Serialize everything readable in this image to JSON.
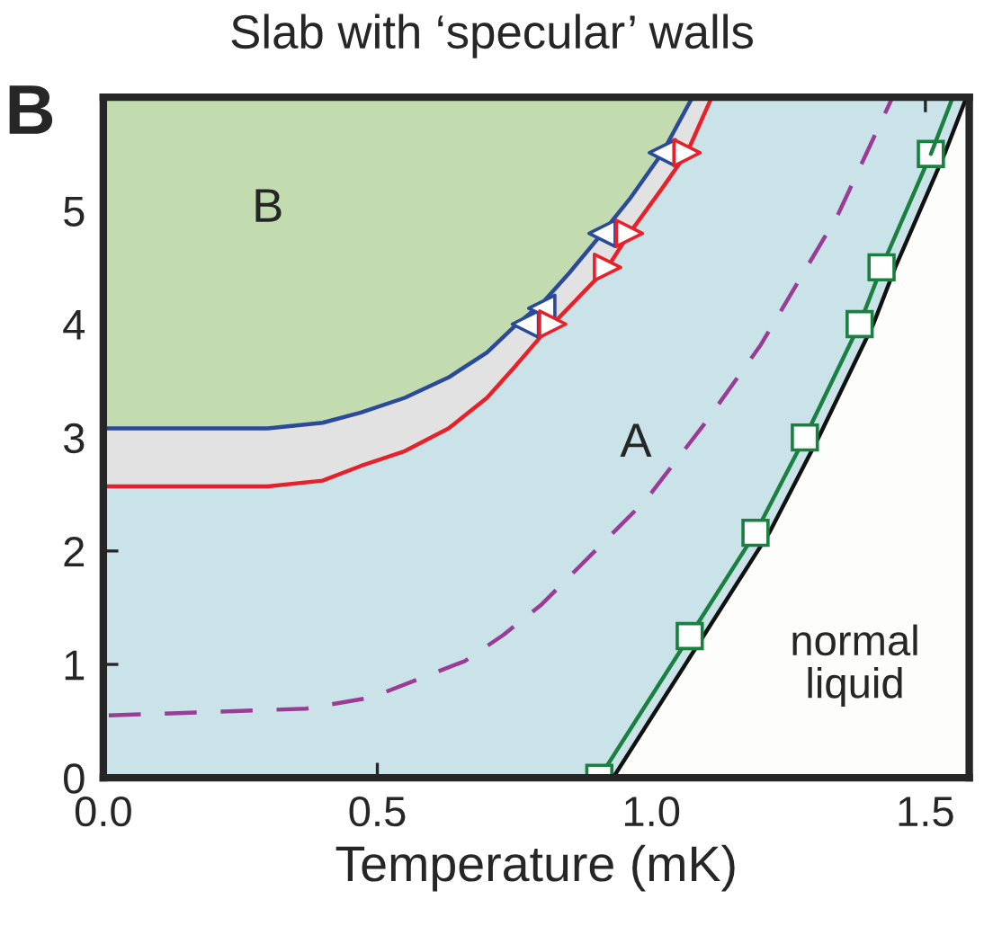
{
  "chart_data": {
    "type": "line",
    "title": "Slab with ‘specular’ walls",
    "xlabel": "Temperature (mK)",
    "xlim": [
      0,
      1.58
    ],
    "ylim": [
      0,
      6.0
    ],
    "xticks": [
      {
        "value": 0,
        "label": "0.0"
      },
      0.5,
      {
        "value": 1,
        "label": "1.0"
      },
      1.5
    ],
    "yticks": [
      0,
      1,
      2,
      3,
      4,
      5
    ],
    "annotations": [
      "B",
      "B",
      "A",
      "normal liquid"
    ],
    "series": [
      {
        "color": "#2b4a9a",
        "x": [
          0,
          0.3,
          0.4,
          0.47,
          0.55,
          0.63,
          0.7,
          0.75,
          0.8,
          0.85,
          0.91,
          0.96,
          1.02,
          1.075
        ],
        "values": [
          3.08,
          3.08,
          3.13,
          3.22,
          3.35,
          3.53,
          3.75,
          3.98,
          4.18,
          4.45,
          4.8,
          5.1,
          5.51,
          6.0
        ]
      },
      {
        "color": "#e8202a",
        "x": [
          0,
          0.3,
          0.4,
          0.47,
          0.55,
          0.63,
          0.7,
          0.75,
          0.8,
          0.86,
          0.92,
          0.96,
          1.02,
          1.065,
          1.11
        ],
        "values": [
          2.57,
          2.57,
          2.62,
          2.75,
          2.88,
          3.08,
          3.35,
          3.62,
          3.9,
          4.2,
          4.5,
          4.8,
          5.2,
          5.51,
          6.0
        ]
      },
      {
        "color": "#9a3c96",
        "line_style": "dashed",
        "x": [
          0.01,
          0.37,
          0.49,
          0.66,
          0.73,
          0.8,
          0.99,
          1.1,
          1.2,
          1.34,
          1.44
        ],
        "values": [
          0.55,
          0.61,
          0.71,
          1.03,
          1.26,
          1.53,
          2.45,
          3.14,
          3.82,
          4.96,
          6.0
        ]
      },
      {
        "color": "#111111",
        "x": [
          0.93,
          1.095,
          1.215,
          1.305,
          1.405,
          1.445,
          1.535,
          1.575
        ],
        "values": [
          0,
          1.25,
          2.16,
          3.0,
          4.0,
          4.5,
          5.5,
          6.0
        ]
      },
      {
        "color": "#1a8040",
        "marker": "square",
        "x": [
          0.905,
          1.07,
          1.19,
          1.28,
          1.38,
          1.42,
          1.51
        ],
        "values": [
          0,
          1.25,
          2.16,
          3.0,
          4.0,
          4.5,
          5.5
        ]
      },
      {
        "color": "#1a8040",
        "x": [
          1.51,
          1.55
        ],
        "values": [
          5.5,
          6.0
        ]
      },
      {
        "type": "scatter",
        "color": "#2b4a9a",
        "marker": "triangle-left",
        "x": [
          0.77,
          0.8,
          0.91,
          1.02
        ],
        "values": [
          4.0,
          4.14,
          4.8,
          5.51
        ]
      },
      {
        "type": "scatter",
        "color": "#e8202a",
        "marker": "triangle-right",
        "x": [
          0.82,
          0.92,
          0.96,
          1.065
        ],
        "values": [
          4.0,
          4.5,
          4.8,
          5.51
        ]
      }
    ]
  }
}
